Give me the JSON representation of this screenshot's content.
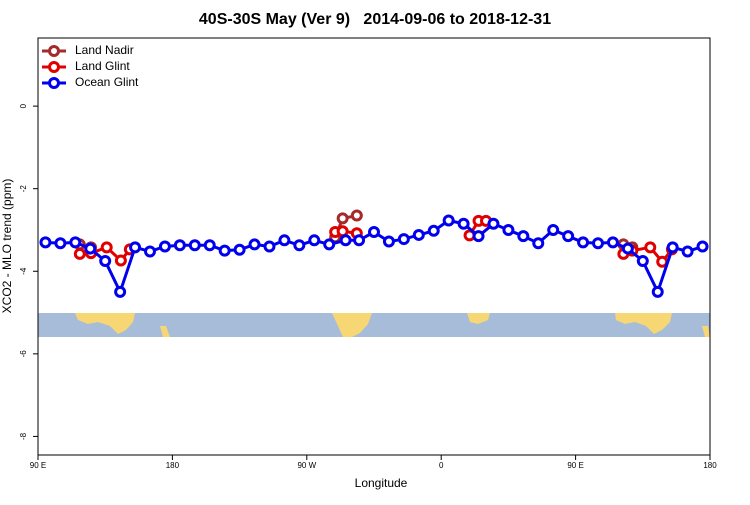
{
  "chart_data": {
    "type": "line",
    "title": "40S-30S May (Ver 9)   2014-09-06 to 2018-12-31",
    "x_label": "Longitude",
    "y_label": "XCO2 - MLO trend (ppm)",
    "xlim": [
      90,
      540
    ],
    "ylim": [
      -8.45,
      1.65
    ],
    "xticks": [
      {
        "value": 90,
        "label": "90 E"
      },
      180,
      {
        "value": 270,
        "label": "90 W"
      },
      {
        "value": 360,
        "label": "0"
      },
      {
        "value": 450,
        "label": "90 E"
      },
      {
        "value": 540,
        "label": "180"
      }
    ],
    "yticks": [
      0,
      -2,
      -4,
      -6,
      -8
    ],
    "legend": "top-left",
    "series": [
      {
        "name": "Land Nadir",
        "color": "#a52a2a",
        "x": [
          118,
          125.5,
          200,
          289,
          294,
          303.5,
          400,
          482,
          488
        ],
        "values": [
          -3.35,
          -3.42,
          null,
          -3.18,
          -2.72,
          -2.65,
          null,
          -3.35,
          -3.42
        ]
      },
      {
        "name": "Land Glint",
        "color": "#e00000",
        "x": [
          118,
          125.5,
          136,
          145.5,
          151.5,
          200,
          289,
          294,
          303.5,
          340,
          379,
          385,
          390,
          440,
          482,
          488,
          500,
          508,
          514.5
        ],
        "values": [
          -3.58,
          -3.56,
          -3.42,
          -3.74,
          -3.47,
          null,
          -3.05,
          -3.03,
          -3.08,
          null,
          -3.13,
          -2.78,
          -2.78,
          null,
          -3.58,
          -3.5,
          -3.42,
          -3.77,
          -3.47
        ]
      },
      {
        "name": "Ocean Glint",
        "color": "#0000ee",
        "x": [
          95,
          105,
          115,
          125,
          135,
          145,
          155,
          165,
          175,
          185,
          195,
          205,
          215,
          225,
          235,
          245,
          255,
          265,
          275,
          285,
          296,
          305,
          315,
          325,
          335,
          345,
          355,
          365,
          375,
          385,
          395,
          405,
          415,
          425,
          435,
          445,
          455,
          465,
          475,
          485,
          495,
          505,
          515,
          525,
          535
        ],
        "values": [
          -3.3,
          -3.32,
          -3.3,
          -3.45,
          -3.75,
          -4.5,
          -3.42,
          -3.52,
          -3.4,
          -3.37,
          -3.37,
          -3.37,
          -3.5,
          -3.48,
          -3.35,
          -3.4,
          -3.25,
          -3.37,
          -3.25,
          -3.35,
          -3.25,
          -3.25,
          -3.05,
          -3.28,
          -3.22,
          -3.12,
          -3.02,
          -2.77,
          -2.85,
          -3.15,
          -2.85,
          -3.0,
          -3.15,
          -3.32,
          -3.0,
          -3.15,
          -3.3,
          -3.32,
          -3.3,
          -3.45,
          -3.75,
          -4.5,
          -3.42,
          -3.52,
          -3.4
        ]
      }
    ]
  }
}
